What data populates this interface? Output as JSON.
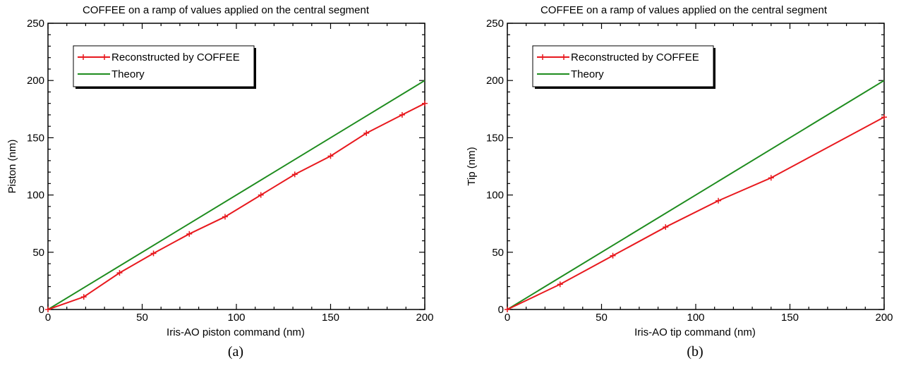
{
  "chart_data": [
    {
      "type": "line",
      "title": "COFFEE on a ramp of values applied on the central segment",
      "xlabel": "Iris-AO piston command (nm)",
      "ylabel": "Piston (nm)",
      "xlim": [
        0,
        200
      ],
      "ylim": [
        0,
        250
      ],
      "xticks": [
        "0",
        "50",
        "100",
        "150",
        "200"
      ],
      "yticks": [
        "0",
        "50",
        "100",
        "150",
        "200",
        "250"
      ],
      "grid": false,
      "legend": "top-left",
      "series": [
        {
          "name": "Reconstructed by COFFEE",
          "color": "#e8191e",
          "markers": true,
          "x": [
            0,
            19,
            38,
            56,
            75,
            94,
            113,
            131,
            150,
            169,
            188,
            200
          ],
          "y": [
            0,
            11,
            32,
            49,
            66,
            81,
            100,
            118,
            134,
            154,
            170,
            180
          ]
        },
        {
          "name": "Theory",
          "color": "#1e8c1e",
          "markers": false,
          "x": [
            0,
            200
          ],
          "y": [
            0,
            200
          ]
        }
      ],
      "caption": "(a)"
    },
    {
      "type": "line",
      "title": "COFFEE on a ramp of values applied on the central segment",
      "xlabel": "Iris-AO tip command (nm)",
      "ylabel": "Tip (nm)",
      "xlim": [
        0,
        200
      ],
      "ylim": [
        0,
        250
      ],
      "xticks": [
        "0",
        "50",
        "100",
        "150",
        "200"
      ],
      "yticks": [
        "0",
        "50",
        "100",
        "150",
        "200",
        "250"
      ],
      "grid": false,
      "legend": "top-left",
      "series": [
        {
          "name": "Reconstructed by COFFEE",
          "color": "#e8191e",
          "markers": true,
          "x": [
            0,
            28,
            56,
            84,
            112,
            140,
            200
          ],
          "y": [
            0,
            22,
            47,
            72,
            95,
            115,
            168
          ]
        },
        {
          "name": "Theory",
          "color": "#1e8c1e",
          "markers": false,
          "x": [
            0,
            200
          ],
          "y": [
            0,
            200
          ]
        }
      ],
      "caption": "(b)"
    }
  ]
}
